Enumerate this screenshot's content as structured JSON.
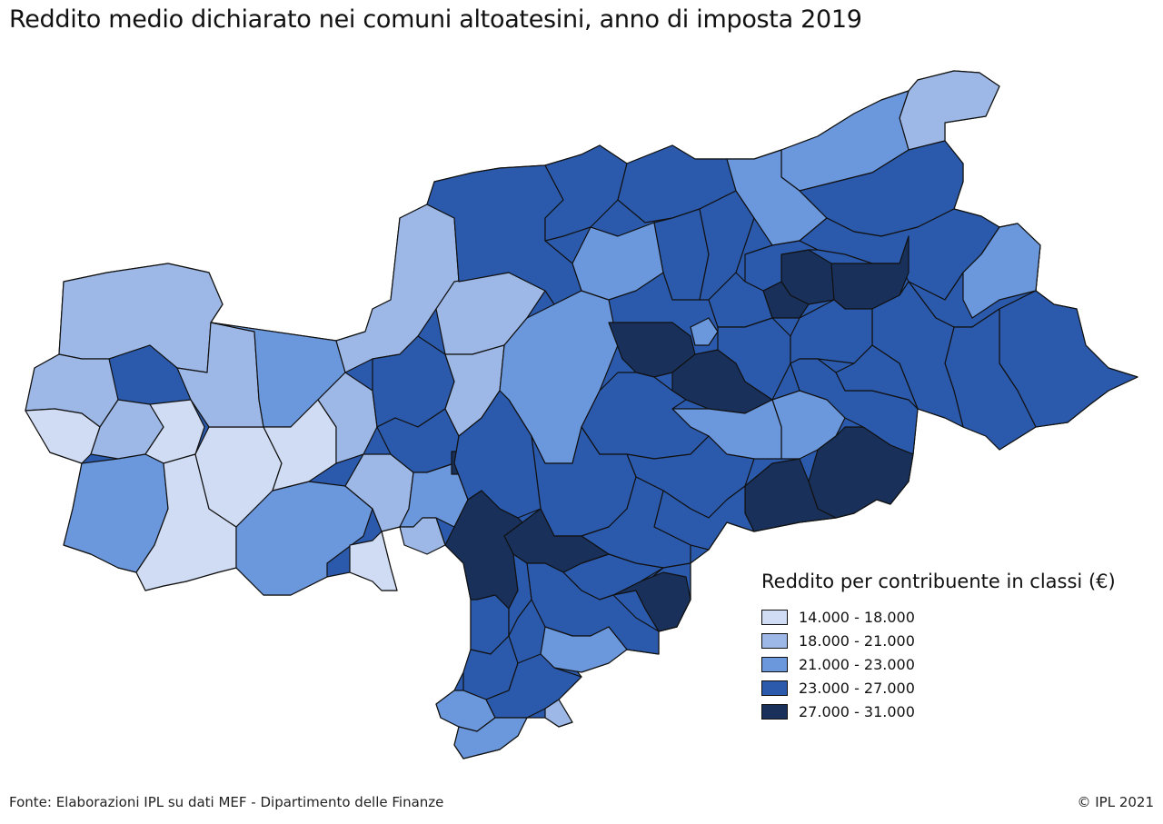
{
  "title": "Reddito medio dichiarato nei comuni altoatesini, anno di imposta 2019",
  "legend": {
    "title": "Reddito per contribuente in classi (€)",
    "classes": [
      {
        "label": "14.000 - 18.000",
        "color": "#d0dcf3"
      },
      {
        "label": "18.000 - 21.000",
        "color": "#9db8e6"
      },
      {
        "label": "21.000 - 23.000",
        "color": "#6b97dc"
      },
      {
        "label": "23.000 - 27.000",
        "color": "#2b5aad"
      },
      {
        "label": "27.000 - 31.000",
        "color": "#18305a"
      }
    ]
  },
  "footer": {
    "source": "Fonte: Elaborazioni IPL su dati MEF - Dipartimento delle Finanze",
    "copyright": "© IPL 2021"
  }
}
